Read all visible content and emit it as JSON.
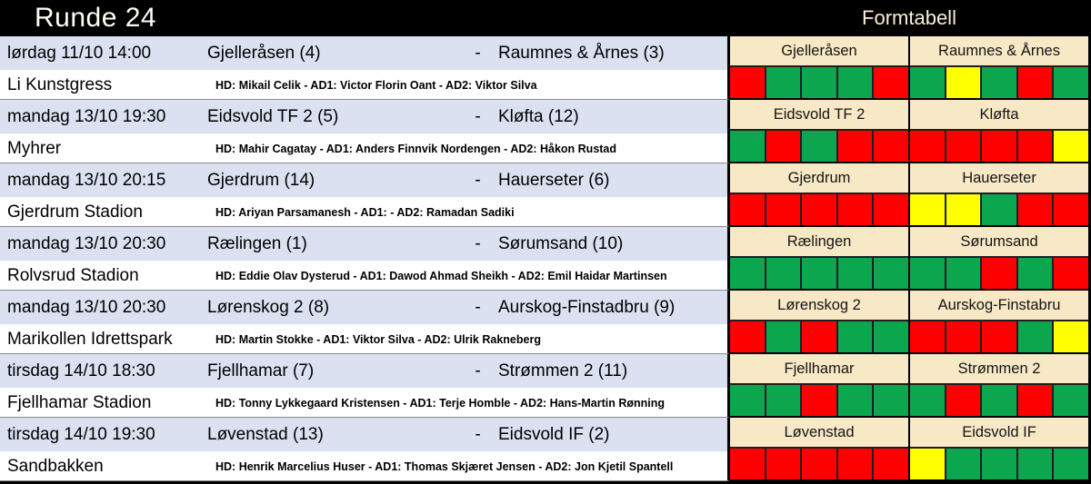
{
  "header": {
    "round_title": "Runde 24",
    "form_title": "Formtabell"
  },
  "legend": {
    "win_color": "#0ca64f",
    "loss_color": "#ff0000",
    "draw_color": "#ffff00",
    "header_bg": "#000000",
    "schedule_row_bg": "#dbe1f1",
    "form_header_bg": "#f7e8c6"
  },
  "matches": [
    {
      "datetime": "lørdag 11/10 14:00",
      "home": "Gjelleråsen (4)",
      "separator": "-",
      "away": "Raumnes & Årnes (3)",
      "venue": "Li Kunstgress",
      "officials": "HD: Mikail Celik - AD1: Victor Florin Oant - AD2: Viktor Silva",
      "home_form_name": "Gjelleråsen",
      "away_form_name": "Raumnes & Årnes",
      "home_form": [
        "L",
        "W",
        "W",
        "W",
        "L"
      ],
      "away_form": [
        "W",
        "D",
        "W",
        "L",
        "W"
      ]
    },
    {
      "datetime": "mandag 13/10 19:30",
      "home": "Eidsvold TF 2 (5)",
      "separator": "-",
      "away": "Kløfta (12)",
      "venue": "Myhrer",
      "officials": "HD: Mahir Cagatay - AD1: Anders Finnvik Nordengen - AD2: Håkon Rustad",
      "home_form_name": "Eidsvold TF 2",
      "away_form_name": "Kløfta",
      "home_form": [
        "W",
        "L",
        "W",
        "L",
        "L"
      ],
      "away_form": [
        "L",
        "L",
        "L",
        "L",
        "D"
      ]
    },
    {
      "datetime": "mandag 13/10 20:15",
      "home": "Gjerdrum (14)",
      "separator": "-",
      "away": "Hauerseter (6)",
      "venue": "Gjerdrum Stadion",
      "officials": "HD: Ariyan Parsamanesh - AD1:  - AD2: Ramadan Sadiki",
      "home_form_name": "Gjerdrum",
      "away_form_name": "Hauerseter",
      "home_form": [
        "L",
        "L",
        "L",
        "L",
        "L"
      ],
      "away_form": [
        "D",
        "D",
        "W",
        "L",
        "L"
      ]
    },
    {
      "datetime": "mandag 13/10 20:30",
      "home": "Rælingen (1)",
      "separator": "-",
      "away": "Sørumsand (10)",
      "venue": "Rolvsrud Stadion",
      "officials": "HD: Eddie Olav Dysterud - AD1: Dawod Ahmad Sheikh - AD2: Emil Haidar Martinsen",
      "home_form_name": "Rælingen",
      "away_form_name": "Sørumsand",
      "home_form": [
        "W",
        "W",
        "W",
        "W",
        "W"
      ],
      "away_form": [
        "W",
        "W",
        "L",
        "W",
        "L"
      ]
    },
    {
      "datetime": "mandag 13/10 20:30",
      "home": "Lørenskog 2 (8)",
      "separator": "-",
      "away": "Aurskog-Finstadbru (9)",
      "venue": "Marikollen Idrettspark",
      "officials": "HD: Martin Stokke - AD1: Viktor Silva - AD2: Ulrik Rakneberg",
      "home_form_name": "Lørenskog 2",
      "away_form_name": "Aurskog-Finstabru",
      "home_form": [
        "L",
        "W",
        "L",
        "W",
        "W"
      ],
      "away_form": [
        "L",
        "L",
        "L",
        "W",
        "D"
      ]
    },
    {
      "datetime": "tirsdag 14/10 18:30",
      "home": "Fjellhamar (7)",
      "separator": "-",
      "away": "Strømmen 2 (11)",
      "venue": "Fjellhamar Stadion",
      "officials": "HD: Tonny Lykkegaard Kristensen - AD1: Terje Homble - AD2: Hans-Martin Rønning",
      "home_form_name": "Fjellhamar",
      "away_form_name": "Strømmen 2",
      "home_form": [
        "W",
        "W",
        "L",
        "W",
        "W"
      ],
      "away_form": [
        "W",
        "L",
        "W",
        "L",
        "W"
      ]
    },
    {
      "datetime": "tirsdag 14/10 19:30",
      "home": "Løvenstad (13)",
      "separator": "-",
      "away": "Eidsvold IF (2)",
      "venue": "Sandbakken",
      "officials": "HD: Henrik Marcelius Huser - AD1: Thomas Skjæret Jensen - AD2: Jon Kjetil Spantell",
      "home_form_name": "Løvenstad",
      "away_form_name": "Eidsvold IF",
      "home_form": [
        "L",
        "L",
        "L",
        "L",
        "L"
      ],
      "away_form": [
        "D",
        "W",
        "W",
        "W",
        "W"
      ]
    }
  ]
}
